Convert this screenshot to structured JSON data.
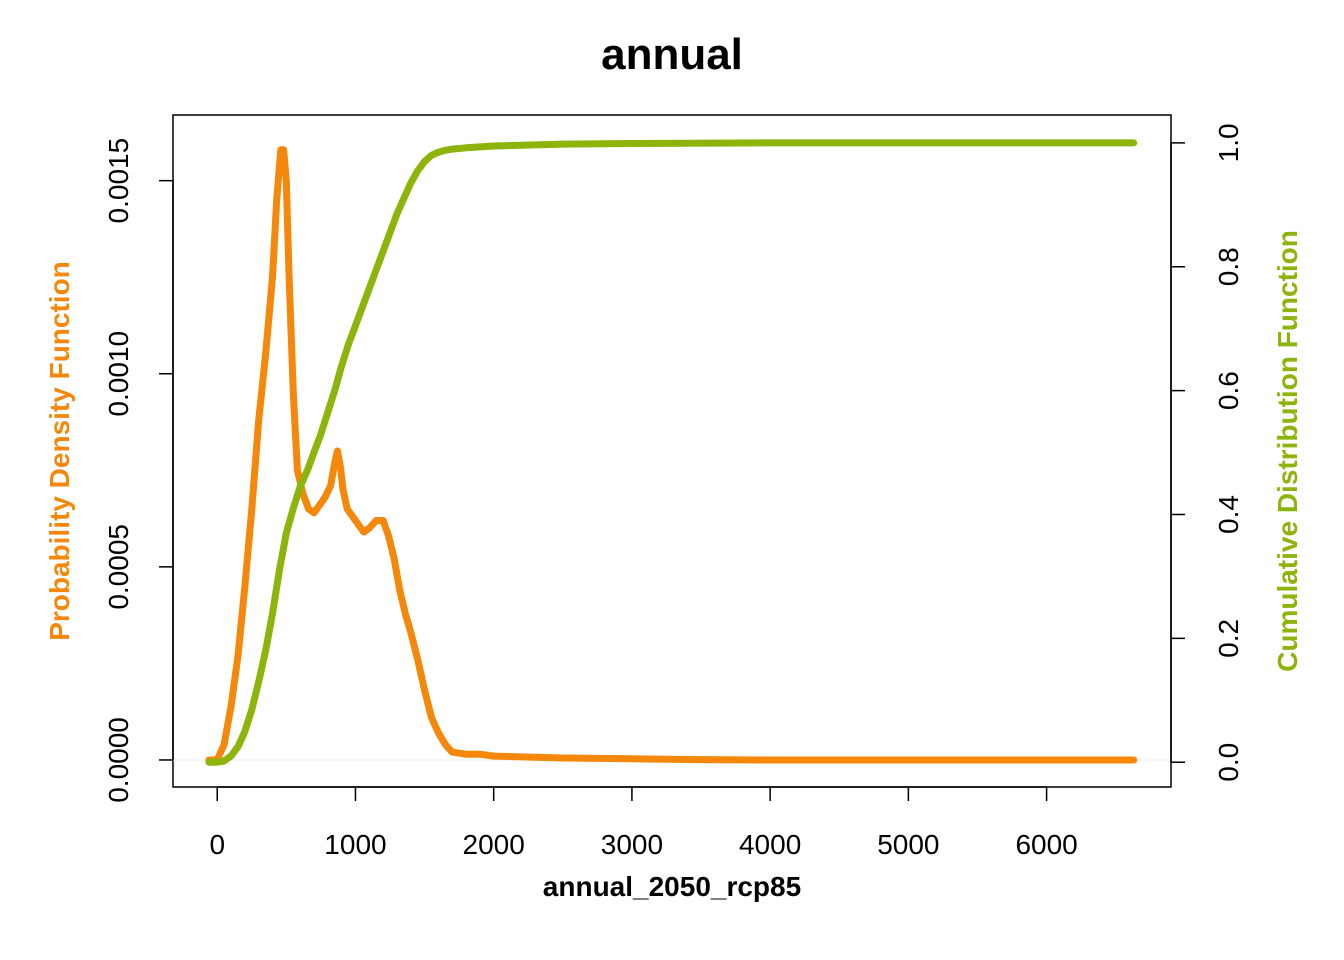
{
  "chart_data": {
    "type": "line",
    "title": "annual",
    "xlabel": "annual_2050_rcp85",
    "ylabel_left": "Probability Density Function",
    "ylabel_right": "Cumulative Distribution Function",
    "xlim": [
      -320,
      6900
    ],
    "ylim_left": [
      -7e-05,
      0.00167
    ],
    "ylim_right": [
      -0.04,
      1.045
    ],
    "x_ticks": [
      0,
      1000,
      2000,
      3000,
      4000,
      5000,
      6000
    ],
    "x_tick_labels": [
      "0",
      "1000",
      "2000",
      "3000",
      "4000",
      "5000",
      "6000"
    ],
    "y_left_ticks": [
      0,
      0.0005,
      0.001,
      0.0015
    ],
    "y_left_tick_labels": [
      "0.0000",
      "0.0005",
      "0.0010",
      "0.0015"
    ],
    "y_right_ticks": [
      0,
      0.2,
      0.4,
      0.6,
      0.8,
      1.0
    ],
    "y_right_tick_labels": [
      "0.0",
      "0.2",
      "0.4",
      "0.6",
      "0.8",
      "1.0"
    ],
    "colors": {
      "pdf": "#f5870a",
      "cdf": "#8cb40a",
      "axis": "#000000"
    },
    "series": [
      {
        "name": "Probability Density Function",
        "axis": "left",
        "x": [
          -60,
          0,
          50,
          100,
          150,
          200,
          250,
          300,
          350,
          400,
          430,
          460,
          480,
          500,
          520,
          550,
          580,
          620,
          660,
          700,
          740,
          780,
          820,
          850,
          870,
          890,
          910,
          940,
          980,
          1020,
          1060,
          1100,
          1150,
          1200,
          1240,
          1280,
          1320,
          1360,
          1400,
          1450,
          1500,
          1550,
          1600,
          1650,
          1700,
          1800,
          1900,
          2000,
          2200,
          2500,
          3000,
          3500,
          4000,
          5000,
          6000,
          6630
        ],
        "y": [
          0.0,
          0.0,
          4e-05,
          0.00014,
          0.00027,
          0.00045,
          0.00065,
          0.00088,
          0.00105,
          0.00125,
          0.00145,
          0.00158,
          0.00158,
          0.0015,
          0.00125,
          0.00095,
          0.00075,
          0.00069,
          0.00065,
          0.00064,
          0.00066,
          0.00068,
          0.00071,
          0.00077,
          0.0008,
          0.00076,
          0.0007,
          0.00065,
          0.00063,
          0.00061,
          0.00059,
          0.0006,
          0.00062,
          0.00062,
          0.00058,
          0.00052,
          0.00044,
          0.00038,
          0.00033,
          0.00026,
          0.00018,
          0.00011,
          7e-05,
          4e-05,
          2e-05,
          1.5e-05,
          1.5e-05,
          1e-05,
          8e-06,
          5e-06,
          3e-06,
          1e-06,
          0.0,
          0.0,
          0.0,
          0.0
        ]
      },
      {
        "name": "Cumulative Distribution Function",
        "axis": "right",
        "x": [
          -60,
          0,
          50,
          100,
          150,
          200,
          250,
          300,
          350,
          400,
          450,
          500,
          550,
          600,
          650,
          700,
          750,
          800,
          850,
          900,
          950,
          1000,
          1050,
          1100,
          1150,
          1200,
          1250,
          1300,
          1350,
          1400,
          1450,
          1500,
          1550,
          1600,
          1650,
          1700,
          1800,
          2000,
          2500,
          3000,
          4000,
          5000,
          6000,
          6630
        ],
        "y": [
          0.0,
          0.0,
          0.002,
          0.01,
          0.025,
          0.05,
          0.085,
          0.13,
          0.18,
          0.24,
          0.31,
          0.37,
          0.41,
          0.445,
          0.47,
          0.5,
          0.53,
          0.565,
          0.6,
          0.64,
          0.675,
          0.705,
          0.735,
          0.765,
          0.795,
          0.825,
          0.855,
          0.885,
          0.91,
          0.935,
          0.955,
          0.97,
          0.98,
          0.985,
          0.988,
          0.99,
          0.992,
          0.995,
          0.998,
          0.999,
          1.0,
          1.0,
          1.0,
          1.0
        ]
      }
    ]
  }
}
